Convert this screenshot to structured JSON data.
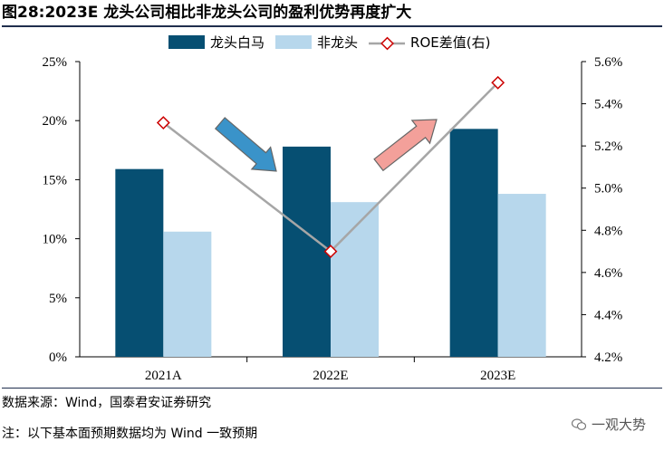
{
  "title": "图28:2023E 龙头公司相比非龙头公司的盈利优势再度扩大",
  "footer": {
    "source": "数据来源：Wind，国泰君安证券研究",
    "note": "注：以下基本面预期数据均为 Wind 一致预期",
    "watermark": "一观大势"
  },
  "colors": {
    "leader": "#064f72",
    "non_leader": "#b7d7ec",
    "roe_line": "#a6a6a6",
    "roe_marker": "#cc0000",
    "arrow_down": "#3a93c9",
    "arrow_up": "#f3a09a"
  },
  "icons": {
    "arrow_down": "down-arrow-icon",
    "arrow_up": "up-arrow-icon",
    "watermark": "wechat-icon"
  },
  "chart_data": {
    "type": "bar",
    "categories": [
      "2021A",
      "2022E",
      "2023E"
    ],
    "series": [
      {
        "name": "龙头白马",
        "type": "bar",
        "axis": "left",
        "values": [
          15.9,
          17.8,
          19.3
        ]
      },
      {
        "name": "非龙头",
        "type": "bar",
        "axis": "left",
        "values": [
          10.6,
          13.1,
          13.8
        ]
      },
      {
        "name": "ROE差值(右)",
        "type": "line",
        "axis": "right",
        "values": [
          5.31,
          4.7,
          5.5
        ]
      }
    ],
    "y_left": {
      "min": 0,
      "max": 25,
      "step": 5,
      "ticks": [
        "0%",
        "5%",
        "10%",
        "15%",
        "20%",
        "25%"
      ]
    },
    "y_right": {
      "min": 4.2,
      "max": 5.6,
      "step": 0.2,
      "ticks": [
        "4.2%",
        "4.4%",
        "4.6%",
        "4.8%",
        "5.0%",
        "5.2%",
        "5.4%",
        "5.6%"
      ]
    },
    "legend_position": "top-center",
    "grid": false
  }
}
